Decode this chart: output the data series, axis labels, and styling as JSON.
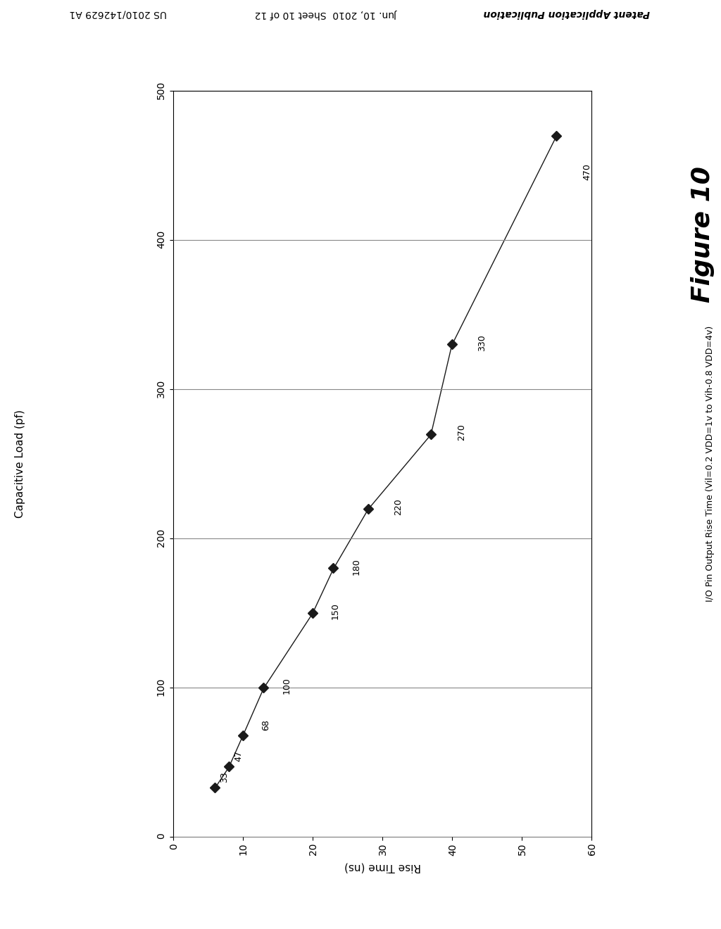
{
  "title": "Figure 10",
  "rise_time_label": "Rise Time (ns)",
  "cap_load_label": "Capacitive Load (pf)",
  "ylabel_long": "I/O Pin Output Rise Time (Vil=0.2 VDD=1v to Vih-0.8 VDD=4v)",
  "rise_time": [
    55,
    40,
    37,
    28,
    23,
    20,
    13,
    10,
    8,
    6
  ],
  "cap_load": [
    470,
    330,
    270,
    220,
    180,
    150,
    100,
    68,
    47,
    33
  ],
  "point_labels": [
    "470",
    "330",
    "270",
    "220",
    "180",
    "150",
    "100",
    "68",
    "47",
    "33"
  ],
  "rt_lim": [
    0,
    60
  ],
  "cl_lim": [
    0,
    500
  ],
  "rt_ticks": [
    0,
    10,
    20,
    30,
    40,
    50,
    60
  ],
  "cl_ticks": [
    0,
    100,
    200,
    300,
    400,
    500
  ],
  "marker_color": "#1a1a1a",
  "line_color": "#1a1a1a",
  "bg_color": "#ffffff",
  "header_left": "Patent Application Publication",
  "header_center": "Jun. 10, 2010  Sheet 10 of 12",
  "header_right": "US 2010/142629 A1"
}
